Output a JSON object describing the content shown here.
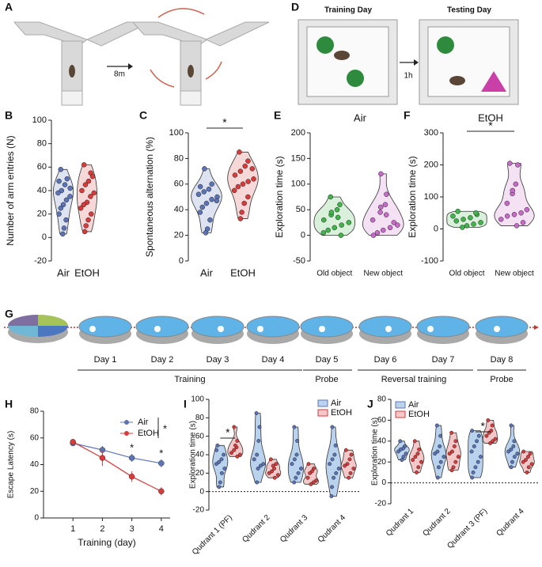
{
  "figure": {
    "a": {
      "label": "A",
      "scale": "8m"
    },
    "d": {
      "label": "D",
      "before": "Training Day",
      "after": "Testing Day",
      "delay": "1h"
    },
    "g": {
      "label": "G",
      "days": [
        "Day 1",
        "Day 2",
        "Day 3",
        "Day 4",
        "Day 5",
        "Day 6",
        "Day 7",
        "Day 8"
      ],
      "phases": [
        "Training",
        "Probe",
        "Reversal training",
        "Probe"
      ]
    }
  },
  "chart_data": [
    {
      "type": "violin",
      "label": "B",
      "ylabel": "Number of arm entries (N)",
      "categories": [
        "Air",
        "EtOH"
      ],
      "colors": [
        "#5b74b8",
        "#d93a3a"
      ],
      "ylim": [
        -20,
        100
      ],
      "yticks": [
        -20,
        0,
        20,
        40,
        60,
        80,
        100
      ],
      "values": [
        [
          58,
          50,
          45,
          40,
          38,
          35,
          32,
          28,
          25,
          20,
          15,
          8,
          3,
          48,
          42
        ],
        [
          62,
          55,
          48,
          45,
          40,
          38,
          35,
          30,
          28,
          25,
          20,
          15,
          10,
          5,
          52
        ]
      ]
    },
    {
      "type": "violin",
      "label": "C",
      "ylabel": "Spontaneous alternation (%)",
      "categories": [
        "Air",
        "EtOH"
      ],
      "colors": [
        "#5b74b8",
        "#d93a3a"
      ],
      "ylim": [
        0,
        100
      ],
      "yticks": [
        0,
        20,
        40,
        60,
        80,
        100
      ],
      "annotations": [
        "*"
      ],
      "values": [
        [
          72,
          60,
          56,
          54,
          52,
          50,
          48,
          45,
          42,
          38,
          32,
          25,
          22,
          58,
          47
        ],
        [
          85,
          78,
          74,
          70,
          67,
          64,
          62,
          60,
          58,
          55,
          50,
          45,
          38,
          33,
          72
        ]
      ]
    },
    {
      "type": "violin",
      "label": "E",
      "title": "Air",
      "ylabel": "Exploration time (s)",
      "categories": [
        "Old object",
        "New object"
      ],
      "colors": [
        "#3fb54a",
        "#c86ac9"
      ],
      "ylim": [
        -50,
        200
      ],
      "yticks": [
        -50,
        0,
        50,
        100,
        150,
        200
      ],
      "values": [
        [
          75,
          60,
          50,
          40,
          30,
          25,
          20,
          15,
          10,
          5,
          0,
          35,
          45
        ],
        [
          120,
          80,
          60,
          45,
          30,
          20,
          15,
          10,
          5,
          0,
          25,
          40,
          55
        ]
      ]
    },
    {
      "type": "violin",
      "label": "F",
      "title": "EtOH",
      "ylabel": "Exploration time (s)",
      "categories": [
        "Old object",
        "New object"
      ],
      "colors": [
        "#3fb54a",
        "#c86ac9"
      ],
      "ylim": [
        -100,
        300
      ],
      "yticks": [
        -100,
        0,
        100,
        200,
        300
      ],
      "annotations": [
        "*"
      ],
      "values": [
        [
          55,
          45,
          35,
          30,
          25,
          20,
          15,
          10,
          5,
          40,
          50
        ],
        [
          205,
          200,
          140,
          110,
          80,
          60,
          50,
          45,
          40,
          30,
          20,
          10,
          120
        ]
      ]
    },
    {
      "type": "line",
      "label": "H",
      "ylabel": "Escape Latency (s)",
      "xlabel": "Training (day)",
      "x": [
        1,
        2,
        3,
        4
      ],
      "xlim": [
        0,
        4.3
      ],
      "xticks": [
        1,
        2,
        3,
        4
      ],
      "ylim": [
        0,
        80
      ],
      "yticks": [
        0,
        20,
        40,
        60,
        80
      ],
      "series": [
        {
          "name": "Air",
          "color": "#5b74b8",
          "values": [
            56,
            51,
            45,
            41
          ],
          "errors": [
            2,
            3,
            3,
            3
          ]
        },
        {
          "name": "EtOH",
          "color": "#d93a3a",
          "values": [
            57,
            45,
            31,
            20
          ],
          "errors": [
            2,
            6,
            4,
            3
          ]
        }
      ],
      "annotations": [
        "*",
        "*",
        "*"
      ]
    },
    {
      "type": "grouped-violin",
      "label": "I",
      "ylabel": "Exploration time (s)",
      "categories": [
        "Qudrant 1 (PF)",
        "Qudrant 2",
        "Qudrant 3",
        "Qudrant 4"
      ],
      "ylim": [
        -20,
        100
      ],
      "yticks": [
        -20,
        0,
        20,
        40,
        60,
        80,
        100
      ],
      "annotations": [
        "*"
      ],
      "series": [
        {
          "name": "Air",
          "color": "#5b74b8",
          "fill": "#b9d3ee",
          "values": [
            [
              50,
              40,
              35,
              32,
              30,
              25,
              20,
              10,
              5,
              45
            ],
            [
              85,
              70,
              55,
              40,
              35,
              30,
              28,
              25,
              10
            ],
            [
              70,
              55,
              40,
              35,
              30,
              25,
              20,
              15,
              10
            ],
            [
              70,
              50,
              40,
              35,
              30,
              25,
              20,
              15,
              5,
              -5
            ]
          ]
        },
        {
          "name": "EtOH",
          "color": "#d93a3a",
          "fill": "#f4c8c8",
          "values": [
            [
              70,
              55,
              48,
              45,
              42,
              40,
              38,
              50
            ],
            [
              35,
              30,
              25,
              22,
              20,
              18,
              15,
              28
            ],
            [
              30,
              25,
              22,
              20,
              15,
              12,
              10,
              8
            ],
            [
              45,
              40,
              35,
              30,
              28,
              25,
              20,
              15
            ]
          ]
        }
      ]
    },
    {
      "type": "grouped-violin",
      "label": "J",
      "ylabel": "Exploration time (s)",
      "categories": [
        "Qudrant 1",
        "Qudrant 2",
        "Qudrant 3 (PF)",
        "Qudrant 4"
      ],
      "ylim": [
        -20,
        80
      ],
      "yticks": [
        -20,
        0,
        20,
        40,
        60,
        80
      ],
      "annotations": [
        "*"
      ],
      "series": [
        {
          "name": "Air",
          "color": "#5b74b8",
          "fill": "#b9d3ee",
          "values": [
            [
              40,
              35,
              33,
              32,
              30,
              28,
              25,
              22
            ],
            [
              55,
              45,
              35,
              30,
              28,
              25,
              20,
              15,
              5
            ],
            [
              50,
              45,
              40,
              35,
              30,
              25,
              20,
              15,
              10,
              5
            ],
            [
              55,
              40,
              35,
              32,
              30,
              28,
              25,
              20,
              15
            ]
          ]
        },
        {
          "name": "EtOH",
          "color": "#d93a3a",
          "fill": "#f4c8c8",
          "values": [
            [
              40,
              32,
              28,
              25,
              22,
              20,
              15,
              10
            ],
            [
              48,
              40,
              35,
              30,
              28,
              25,
              20,
              15,
              12
            ],
            [
              60,
              55,
              50,
              48,
              45,
              42,
              40,
              38
            ],
            [
              30,
              28,
              25,
              22,
              20,
              18,
              15,
              10
            ]
          ]
        }
      ]
    }
  ]
}
